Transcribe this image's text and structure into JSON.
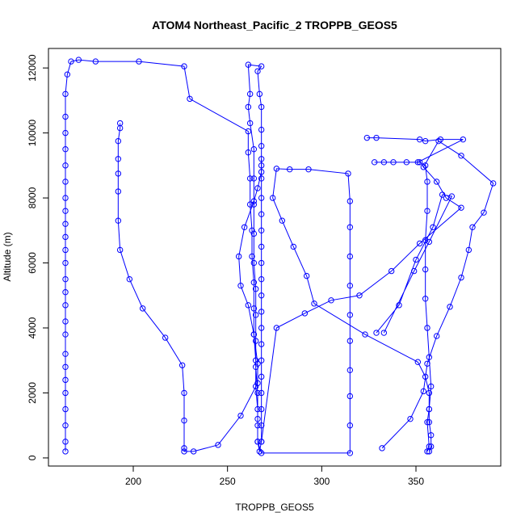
{
  "chart_data": {
    "type": "scatter",
    "title": "ATOM4 Northeast_Pacific_2 TROPPB_GEOS5",
    "xlabel": "TROPPB_GEOS5",
    "ylabel": "Altitude (m)",
    "xlim": [
      155,
      395
    ],
    "ylim": [
      -250,
      12600
    ],
    "x_ticks": [
      200,
      250,
      300,
      350
    ],
    "y_ticks": [
      0,
      2000,
      4000,
      6000,
      8000,
      10000,
      12000
    ],
    "grid": false,
    "color": "#0000ff",
    "marker": "open-circle",
    "series": [
      {
        "points": [
          [
            164,
            200
          ],
          [
            164,
            500
          ],
          [
            164,
            1000
          ],
          [
            164,
            1500
          ],
          [
            164,
            2000
          ],
          [
            164,
            2400
          ],
          [
            164,
            2800
          ],
          [
            164,
            3200
          ],
          [
            164,
            3800
          ],
          [
            164,
            4200
          ],
          [
            164,
            4700
          ],
          [
            164,
            5100
          ],
          [
            164,
            5500
          ],
          [
            164,
            6000
          ],
          [
            164,
            6400
          ],
          [
            164,
            6800
          ],
          [
            164,
            7200
          ],
          [
            164,
            7600
          ],
          [
            164,
            8000
          ],
          [
            164,
            8500
          ],
          [
            164,
            9000
          ],
          [
            164,
            9500
          ],
          [
            164,
            10000
          ],
          [
            164,
            10500
          ],
          [
            164,
            11200
          ],
          [
            165,
            11800
          ],
          [
            167,
            12200
          ],
          [
            171,
            12250
          ],
          [
            180,
            12200
          ],
          [
            203,
            12200
          ],
          [
            227,
            12050
          ],
          [
            230,
            11050
          ],
          [
            261,
            10050
          ],
          [
            261,
            9400
          ],
          [
            262,
            8600
          ],
          [
            262,
            7800
          ],
          [
            263,
            7000
          ],
          [
            263,
            6200
          ],
          [
            264,
            5400
          ],
          [
            264,
            4600
          ],
          [
            264,
            3800
          ],
          [
            265,
            3000
          ],
          [
            265,
            2200
          ],
          [
            266,
            1500
          ],
          [
            266,
            1000
          ],
          [
            266,
            500
          ],
          [
            267,
            200
          ],
          [
            268,
            500
          ],
          [
            268,
            1000
          ],
          [
            268,
            1500
          ],
          [
            268,
            2000
          ],
          [
            268,
            2500
          ],
          [
            268,
            3000
          ],
          [
            268,
            3500
          ],
          [
            268,
            4000
          ],
          [
            268,
            4500
          ],
          [
            268,
            5000
          ],
          [
            268,
            5500
          ],
          [
            268,
            6000
          ],
          [
            268,
            6500
          ],
          [
            268,
            7000
          ],
          [
            268,
            7500
          ],
          [
            268,
            8000
          ],
          [
            268,
            8600
          ],
          [
            268,
            9000
          ],
          [
            268,
            9600
          ],
          [
            268,
            10100
          ],
          [
            268,
            10800
          ],
          [
            267,
            11200
          ],
          [
            266,
            11900
          ],
          [
            268,
            12050
          ],
          [
            261,
            12100
          ],
          [
            262,
            11200
          ],
          [
            261,
            10800
          ],
          [
            262,
            10300
          ],
          [
            264,
            9500
          ],
          [
            264,
            8600
          ],
          [
            264,
            7800
          ],
          [
            264,
            6900
          ],
          [
            264,
            6000
          ],
          [
            265,
            5200
          ],
          [
            265,
            4400
          ],
          [
            265,
            3600
          ],
          [
            265,
            2800
          ],
          [
            266,
            2000
          ],
          [
            266,
            1200
          ],
          [
            266,
            500
          ],
          [
            268,
            150
          ],
          [
            315,
            150
          ],
          [
            315,
            1000
          ],
          [
            315,
            1900
          ],
          [
            315,
            2700
          ],
          [
            315,
            3600
          ],
          [
            315,
            4400
          ],
          [
            315,
            5300
          ],
          [
            315,
            6200
          ],
          [
            315,
            7100
          ],
          [
            315,
            7900
          ],
          [
            314,
            8750
          ],
          [
            293,
            8880
          ],
          [
            283,
            8880
          ],
          [
            276,
            8900
          ],
          [
            274,
            8000
          ],
          [
            279,
            7300
          ],
          [
            285,
            6500
          ],
          [
            292,
            5600
          ],
          [
            296,
            4750
          ],
          [
            323,
            3800
          ],
          [
            351,
            2950
          ],
          [
            355,
            2500
          ],
          [
            357,
            2000
          ],
          [
            357,
            1500
          ],
          [
            357,
            1100
          ],
          [
            358,
            700
          ],
          [
            358,
            350
          ],
          [
            357,
            200
          ]
        ]
      },
      {
        "points": [
          [
            193,
            10300
          ],
          [
            193,
            10150
          ],
          [
            192,
            9750
          ],
          [
            192,
            9200
          ],
          [
            192,
            8750
          ],
          [
            192,
            8200
          ],
          [
            192,
            7300
          ],
          [
            193,
            6400
          ],
          [
            198,
            5500
          ],
          [
            205,
            4600
          ],
          [
            217,
            3700
          ],
          [
            226,
            2850
          ],
          [
            227,
            2000
          ],
          [
            227,
            1150
          ],
          [
            227,
            300
          ],
          [
            227,
            200
          ],
          [
            232,
            200
          ],
          [
            245,
            400
          ],
          [
            257,
            1300
          ],
          [
            266,
            2300
          ],
          [
            266,
            2900
          ],
          [
            264,
            3800
          ],
          [
            261,
            4700
          ],
          [
            257,
            5300
          ],
          [
            256,
            6200
          ],
          [
            259,
            7100
          ],
          [
            264,
            7900
          ],
          [
            266,
            8300
          ],
          [
            268,
            8800
          ],
          [
            268,
            9200
          ]
        ]
      },
      {
        "points": [
          [
            324,
            9850
          ],
          [
            329,
            9850
          ],
          [
            352,
            9800
          ],
          [
            355,
            9750
          ],
          [
            363,
            9800
          ],
          [
            375,
            9800
          ],
          [
            351,
            9100
          ],
          [
            345,
            9100
          ],
          [
            338,
            9100
          ],
          [
            333,
            9100
          ],
          [
            328,
            9100
          ],
          [
            352,
            9100
          ],
          [
            355,
            9000
          ],
          [
            356,
            8500
          ],
          [
            356,
            7600
          ],
          [
            355,
            6700
          ],
          [
            355,
            5800
          ],
          [
            355,
            4900
          ],
          [
            356,
            4000
          ],
          [
            357,
            3100
          ],
          [
            358,
            2200
          ],
          [
            357,
            1500
          ],
          [
            356,
            1100
          ],
          [
            357,
            350
          ],
          [
            356,
            200
          ]
        ]
      },
      {
        "points": [
          [
            332,
            300
          ],
          [
            347,
            1200
          ],
          [
            354,
            2050
          ],
          [
            356,
            2900
          ],
          [
            361,
            3750
          ],
          [
            368,
            4650
          ],
          [
            374,
            5550
          ],
          [
            378,
            6400
          ],
          [
            380,
            7100
          ],
          [
            386,
            7550
          ],
          [
            391,
            8450
          ],
          [
            374,
            9300
          ],
          [
            362,
            9750
          ],
          [
            354,
            8950
          ],
          [
            361,
            8500
          ],
          [
            366,
            8000
          ],
          [
            374,
            7700
          ],
          [
            352,
            6600
          ],
          [
            337,
            5750
          ],
          [
            320,
            5000
          ],
          [
            305,
            4850
          ],
          [
            291,
            4450
          ],
          [
            276,
            4000
          ],
          [
            268,
            500
          ]
        ]
      },
      {
        "points": [
          [
            329,
            3850
          ],
          [
            341,
            4700
          ],
          [
            350,
            6100
          ],
          [
            359,
            7100
          ],
          [
            364,
            8100
          ],
          [
            369,
            8050
          ],
          [
            357,
            6650
          ],
          [
            349,
            5750
          ],
          [
            333,
            3850
          ]
        ]
      }
    ]
  }
}
